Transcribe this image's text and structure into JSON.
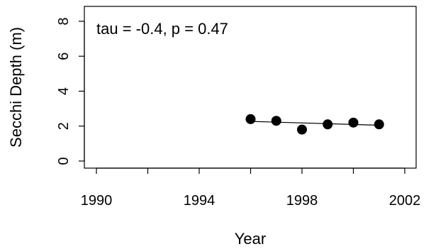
{
  "chart_data": {
    "type": "scatter",
    "xlabel": "Year",
    "ylabel": "Secchi Depth (m)",
    "annotation": "tau = -0.4, p = 0.47",
    "xlim": [
      1990,
      2002
    ],
    "ylim": [
      0,
      8
    ],
    "xticks": [
      1990,
      1992,
      1994,
      1996,
      1998,
      2000,
      2002
    ],
    "xtick_labels": [
      "1990",
      "",
      "1994",
      "",
      "1998",
      "",
      "2002"
    ],
    "yticks": [
      0,
      2,
      4,
      6,
      8
    ],
    "ytick_labels": [
      "0",
      "2",
      "4",
      "6",
      "8"
    ],
    "grid": false,
    "points": [
      {
        "x": 1996,
        "y": 2.4
      },
      {
        "x": 1997,
        "y": 2.3
      },
      {
        "x": 1998,
        "y": 1.8
      },
      {
        "x": 1999,
        "y": 2.1
      },
      {
        "x": 2000,
        "y": 2.2
      },
      {
        "x": 2001,
        "y": 2.1
      }
    ],
    "trend": {
      "x1": 1996,
      "y1": 2.27,
      "x2": 2001,
      "y2": 2.05
    }
  }
}
